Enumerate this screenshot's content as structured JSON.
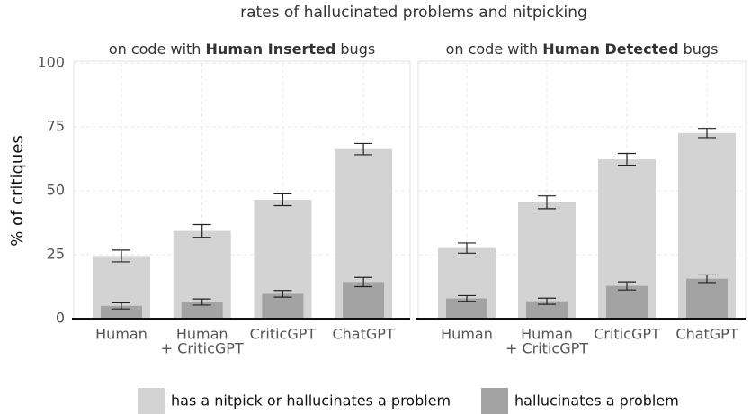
{
  "chart_data": {
    "type": "bar",
    "title": "rates of hallucinated problems and nitpicking",
    "y_label": "% of critiques",
    "ylim": [
      0,
      100
    ],
    "yticks": [
      0,
      25,
      50,
      75,
      100
    ],
    "grid": true,
    "legend": "bottom",
    "legend_entries": [
      {
        "name": "has a nitpick or hallucinates a problem",
        "color": "#d3d3d3"
      },
      {
        "name": "hallucinates a problem",
        "color": "#a3a3a3"
      }
    ],
    "panels": [
      {
        "subtitle": [
          "on code with ",
          "Human Inserted",
          " bugs"
        ],
        "categories": [
          "Human",
          [
            "Human",
            "+ CriticGPT"
          ],
          "CriticGPT",
          "ChatGPT"
        ],
        "series": [
          {
            "name": "has a nitpick or hallucinates a problem",
            "color": "#d3d3d3",
            "values": [
              24.5,
              34.3,
              46.5,
              66.3
            ],
            "errors": [
              2.3,
              2.5,
              2.3,
              2.2
            ]
          },
          {
            "name": "hallucinates a problem",
            "color": "#a3a3a3",
            "values": [
              5,
              6.5,
              9.7,
              14.3
            ],
            "errors": [
              1.2,
              1.2,
              1.3,
              1.8
            ]
          }
        ]
      },
      {
        "subtitle": [
          "on code with ",
          "Human Detected",
          " bugs"
        ],
        "categories": [
          "Human",
          [
            "Human",
            "+ CriticGPT"
          ],
          "CriticGPT",
          "ChatGPT"
        ],
        "series": [
          {
            "name": "has a nitpick or hallucinates a problem",
            "color": "#d3d3d3",
            "values": [
              27.6,
              45.5,
              62.3,
              72.6
            ],
            "errors": [
              2,
              2.5,
              2.3,
              1.8
            ]
          },
          {
            "name": "hallucinates a problem",
            "color": "#a3a3a3",
            "values": [
              7.9,
              6.8,
              12.8,
              15.6
            ],
            "errors": [
              1.1,
              1.2,
              1.6,
              1.5
            ]
          }
        ]
      }
    ]
  }
}
